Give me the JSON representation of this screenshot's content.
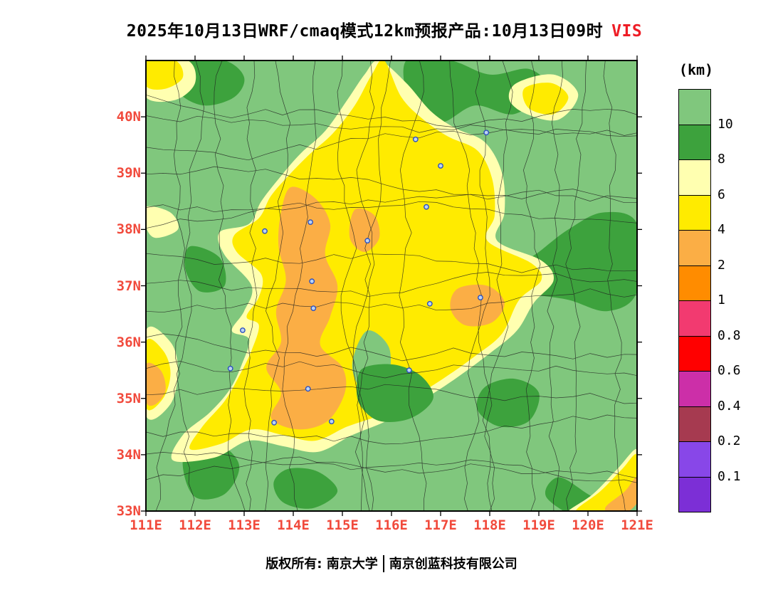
{
  "title": {
    "text": "2025年10月13日WRF/cmaq模式12km预报产品:10月13日09时",
    "highlight": "VIS",
    "highlight_color": "#ee1c25"
  },
  "axes": {
    "lat_labels": [
      "40N",
      "39N",
      "38N",
      "37N",
      "36N",
      "35N",
      "34N",
      "33N"
    ],
    "lon_labels": [
      "111E",
      "112E",
      "113E",
      "114E",
      "115E",
      "116E",
      "117E",
      "118E",
      "119E",
      "120E",
      "121E"
    ],
    "label_color": "#f14a3c"
  },
  "legend": {
    "title": "(km)",
    "tick_labels": [
      "10",
      "8",
      "6",
      "4",
      "2",
      "1",
      "0.8",
      "0.6",
      "0.4",
      "0.2",
      "0.1"
    ]
  },
  "footer": {
    "left": "版权所有: 南京大学",
    "right": "南京创蓝科技有限公司"
  },
  "chart_data": {
    "type": "heatmap",
    "subtype": "filled-contour-visibility-map",
    "variable": "VIS",
    "unit": "km",
    "lon_range": [
      111,
      121
    ],
    "lat_range": [
      33,
      41
    ],
    "legend_levels": [
      10,
      8,
      6,
      4,
      2,
      1,
      0.8,
      0.6,
      0.4,
      0.2,
      0.1
    ],
    "palette": [
      "#80c77d",
      "#3da23d",
      "#ffffb0",
      "#ffeb00",
      "#fbae45",
      "#ff8c00",
      "#f23a70",
      "#ff0000",
      "#cc2fa8",
      "#a63a50",
      "#8847e8",
      "#7c2fd6"
    ],
    "station_fill": "#bcd4f2",
    "station_stroke": "#2b4fc0",
    "regions": [
      {
        "c": 1,
        "pts": [
          [
            111.75,
            41.0
          ],
          [
            112.6,
            41.0
          ],
          [
            113.0,
            40.7
          ],
          [
            112.8,
            40.35
          ],
          [
            112.2,
            40.2
          ],
          [
            111.7,
            40.4
          ],
          [
            111.55,
            40.75
          ]
        ]
      },
      {
        "c": 1,
        "pts": [
          [
            116.3,
            41.0
          ],
          [
            117.2,
            41.0
          ],
          [
            118.0,
            40.75
          ],
          [
            118.8,
            40.85
          ],
          [
            119.15,
            40.5
          ],
          [
            118.5,
            40.05
          ],
          [
            117.7,
            40.2
          ],
          [
            117.0,
            39.9
          ],
          [
            116.4,
            40.2
          ]
        ]
      },
      {
        "c": 1,
        "pts": [
          [
            119.0,
            37.6
          ],
          [
            119.6,
            38.0
          ],
          [
            120.3,
            38.3
          ],
          [
            121.0,
            38.1
          ],
          [
            121.0,
            36.9
          ],
          [
            120.4,
            36.55
          ],
          [
            119.6,
            36.75
          ],
          [
            118.7,
            36.9
          ],
          [
            118.45,
            37.25
          ]
        ]
      },
      {
        "c": 1,
        "pts": [
          [
            111.9,
            37.7
          ],
          [
            112.5,
            37.5
          ],
          [
            112.6,
            37.0
          ],
          [
            112.1,
            36.9
          ],
          [
            111.8,
            37.3
          ]
        ]
      },
      {
        "c": 1,
        "pts": [
          [
            111.9,
            34.3
          ],
          [
            112.5,
            34.2
          ],
          [
            112.9,
            33.8
          ],
          [
            112.6,
            33.3
          ],
          [
            112.0,
            33.25
          ],
          [
            111.75,
            33.8
          ]
        ]
      },
      {
        "c": 1,
        "pts": [
          [
            113.9,
            33.75
          ],
          [
            114.5,
            33.7
          ],
          [
            114.9,
            33.35
          ],
          [
            114.4,
            33.05
          ],
          [
            113.8,
            33.15
          ],
          [
            113.6,
            33.5
          ]
        ]
      },
      {
        "c": 1,
        "pts": [
          [
            117.9,
            35.2
          ],
          [
            118.5,
            35.35
          ],
          [
            119.0,
            35.1
          ],
          [
            118.8,
            34.6
          ],
          [
            118.2,
            34.5
          ],
          [
            117.75,
            34.8
          ]
        ]
      },
      {
        "c": 1,
        "pts": [
          [
            119.4,
            33.6
          ],
          [
            120.0,
            33.3
          ],
          [
            120.6,
            32.95
          ],
          [
            119.9,
            32.85
          ],
          [
            119.15,
            33.25
          ]
        ]
      },
      {
        "c": 2,
        "pts": [
          [
            115.75,
            41.0
          ],
          [
            116.3,
            40.6
          ],
          [
            116.8,
            40.1
          ],
          [
            117.3,
            39.8
          ],
          [
            117.9,
            39.55
          ],
          [
            118.25,
            39.0
          ],
          [
            118.3,
            38.3
          ],
          [
            118.15,
            37.8
          ],
          [
            119.05,
            37.45
          ],
          [
            119.3,
            37.1
          ],
          [
            118.9,
            36.7
          ],
          [
            118.55,
            36.2
          ],
          [
            118.0,
            35.8
          ],
          [
            117.3,
            35.35
          ],
          [
            116.6,
            34.95
          ],
          [
            115.9,
            34.6
          ],
          [
            115.2,
            34.35
          ],
          [
            114.5,
            34.05
          ],
          [
            113.8,
            34.15
          ],
          [
            113.1,
            34.25
          ],
          [
            112.4,
            33.95
          ],
          [
            111.55,
            33.9
          ],
          [
            111.75,
            34.35
          ],
          [
            112.3,
            34.75
          ],
          [
            112.7,
            35.15
          ],
          [
            112.95,
            35.6
          ],
          [
            113.1,
            36.05
          ],
          [
            112.75,
            36.2
          ],
          [
            113.0,
            36.55
          ],
          [
            113.15,
            37.0
          ],
          [
            112.6,
            37.55
          ],
          [
            112.5,
            37.95
          ],
          [
            113.1,
            38.1
          ],
          [
            113.35,
            38.5
          ],
          [
            113.75,
            38.95
          ],
          [
            114.15,
            39.35
          ],
          [
            114.65,
            39.75
          ],
          [
            115.1,
            40.3
          ],
          [
            115.45,
            40.75
          ]
        ]
      },
      {
        "c": 2,
        "pts": [
          [
            111.0,
            41.0
          ],
          [
            111.85,
            41.0
          ],
          [
            112.0,
            40.6
          ],
          [
            111.6,
            40.3
          ],
          [
            111.0,
            40.35
          ]
        ]
      },
      {
        "c": 2,
        "pts": [
          [
            111.0,
            36.2
          ],
          [
            111.5,
            36.0
          ],
          [
            111.65,
            35.5
          ],
          [
            111.5,
            34.9
          ],
          [
            111.0,
            34.7
          ]
        ]
      },
      {
        "c": 2,
        "pts": [
          [
            118.55,
            40.6
          ],
          [
            119.3,
            40.75
          ],
          [
            119.8,
            40.4
          ],
          [
            119.4,
            39.95
          ],
          [
            118.75,
            40.05
          ],
          [
            118.4,
            40.3
          ]
        ]
      },
      {
        "c": 2,
        "pts": [
          [
            119.55,
            32.95
          ],
          [
            120.1,
            33.3
          ],
          [
            120.6,
            33.75
          ],
          [
            121.0,
            34.1
          ],
          [
            121.0,
            33.55
          ],
          [
            120.45,
            33.1
          ],
          [
            119.95,
            32.85
          ]
        ]
      },
      {
        "c": 2,
        "pts": [
          [
            111.0,
            38.4
          ],
          [
            111.5,
            38.3
          ],
          [
            111.65,
            38.0
          ],
          [
            111.2,
            37.85
          ],
          [
            111.0,
            38.05
          ]
        ]
      },
      {
        "c": 3,
        "pts": [
          [
            115.85,
            41.0
          ],
          [
            116.2,
            40.35
          ],
          [
            116.65,
            39.95
          ],
          [
            117.15,
            39.65
          ],
          [
            117.75,
            39.4
          ],
          [
            118.05,
            38.9
          ],
          [
            118.1,
            38.25
          ],
          [
            117.95,
            37.8
          ],
          [
            118.85,
            37.4
          ],
          [
            119.05,
            37.1
          ],
          [
            118.6,
            36.75
          ],
          [
            118.25,
            36.15
          ],
          [
            117.7,
            35.75
          ],
          [
            117.05,
            35.35
          ],
          [
            116.4,
            35.0
          ],
          [
            115.75,
            34.7
          ],
          [
            115.1,
            34.5
          ],
          [
            114.45,
            34.25
          ],
          [
            113.8,
            34.35
          ],
          [
            113.15,
            34.45
          ],
          [
            112.55,
            34.2
          ],
          [
            111.9,
            34.1
          ],
          [
            112.15,
            34.5
          ],
          [
            112.6,
            34.95
          ],
          [
            112.9,
            35.4
          ],
          [
            113.15,
            35.85
          ],
          [
            113.3,
            36.3
          ],
          [
            113.05,
            36.45
          ],
          [
            113.3,
            36.8
          ],
          [
            113.35,
            37.2
          ],
          [
            112.85,
            37.6
          ],
          [
            112.8,
            37.9
          ],
          [
            113.3,
            38.2
          ],
          [
            113.55,
            38.6
          ],
          [
            113.95,
            39.0
          ],
          [
            114.35,
            39.35
          ],
          [
            114.8,
            39.7
          ],
          [
            115.25,
            40.2
          ],
          [
            115.6,
            40.75
          ]
        ]
      },
      {
        "c": 3,
        "pts": [
          [
            111.0,
            41.0
          ],
          [
            111.6,
            41.0
          ],
          [
            111.75,
            40.7
          ],
          [
            111.4,
            40.5
          ],
          [
            111.0,
            40.55
          ]
        ]
      },
      {
        "c": 3,
        "pts": [
          [
            111.0,
            36.0
          ],
          [
            111.35,
            35.85
          ],
          [
            111.5,
            35.45
          ],
          [
            111.35,
            35.0
          ],
          [
            111.0,
            34.85
          ]
        ]
      },
      {
        "c": 3,
        "pts": [
          [
            118.7,
            40.5
          ],
          [
            119.25,
            40.6
          ],
          [
            119.6,
            40.35
          ],
          [
            119.3,
            40.05
          ],
          [
            118.8,
            40.15
          ]
        ]
      },
      {
        "c": 3,
        "pts": [
          [
            119.75,
            33.0
          ],
          [
            120.25,
            33.35
          ],
          [
            120.7,
            33.75
          ],
          [
            121.0,
            34.0
          ],
          [
            121.0,
            33.35
          ],
          [
            120.5,
            33.0
          ],
          [
            120.1,
            32.9
          ]
        ]
      },
      {
        "c": 0,
        "pts": [
          [
            115.5,
            36.2
          ],
          [
            115.95,
            35.9
          ],
          [
            115.9,
            35.3
          ],
          [
            115.45,
            35.1
          ],
          [
            115.2,
            35.6
          ]
        ]
      },
      {
        "c": 1,
        "pts": [
          [
            115.45,
            35.55
          ],
          [
            116.05,
            35.6
          ],
          [
            116.6,
            35.4
          ],
          [
            116.85,
            35.0
          ],
          [
            116.4,
            34.65
          ],
          [
            115.75,
            34.6
          ],
          [
            115.35,
            34.9
          ],
          [
            115.3,
            35.3
          ]
        ]
      },
      {
        "c": 4,
        "pts": [
          [
            113.95,
            38.75
          ],
          [
            114.45,
            38.55
          ],
          [
            114.75,
            38.1
          ],
          [
            114.65,
            37.55
          ],
          [
            114.9,
            37.0
          ],
          [
            114.75,
            36.45
          ],
          [
            114.55,
            35.95
          ],
          [
            115.0,
            35.55
          ],
          [
            115.05,
            35.1
          ],
          [
            114.7,
            34.6
          ],
          [
            114.1,
            34.45
          ],
          [
            113.55,
            34.65
          ],
          [
            113.75,
            35.1
          ],
          [
            113.45,
            35.55
          ],
          [
            113.75,
            36.0
          ],
          [
            113.65,
            36.55
          ],
          [
            113.85,
            37.1
          ],
          [
            113.7,
            37.7
          ],
          [
            113.75,
            38.3
          ]
        ]
      },
      {
        "c": 4,
        "pts": [
          [
            115.25,
            38.35
          ],
          [
            115.65,
            38.25
          ],
          [
            115.75,
            37.85
          ],
          [
            115.45,
            37.6
          ],
          [
            115.15,
            37.85
          ]
        ]
      },
      {
        "c": 4,
        "pts": [
          [
            117.35,
            36.95
          ],
          [
            117.95,
            37.0
          ],
          [
            118.3,
            36.7
          ],
          [
            118.05,
            36.35
          ],
          [
            117.5,
            36.3
          ],
          [
            117.2,
            36.6
          ]
        ]
      },
      {
        "c": 4,
        "pts": [
          [
            111.0,
            35.6
          ],
          [
            111.3,
            35.5
          ],
          [
            111.4,
            35.15
          ],
          [
            111.2,
            34.9
          ],
          [
            111.0,
            34.95
          ]
        ]
      },
      {
        "c": 4,
        "pts": [
          [
            120.35,
            33.05
          ],
          [
            120.75,
            33.35
          ],
          [
            121.0,
            33.6
          ],
          [
            121.0,
            33.15
          ],
          [
            120.6,
            32.9
          ]
        ]
      }
    ],
    "stations": [
      [
        113.42,
        37.97
      ],
      [
        114.35,
        38.13
      ],
      [
        114.38,
        37.08
      ],
      [
        114.41,
        36.6
      ],
      [
        112.97,
        36.21
      ],
      [
        112.72,
        35.53
      ],
      [
        115.51,
        37.8
      ],
      [
        114.3,
        35.17
      ],
      [
        113.61,
        34.57
      ],
      [
        114.78,
        34.59
      ],
      [
        116.71,
        38.4
      ],
      [
        116.78,
        36.68
      ],
      [
        116.49,
        39.6
      ],
      [
        117.0,
        39.13
      ],
      [
        117.93,
        39.72
      ],
      [
        117.81,
        36.79
      ],
      [
        116.36,
        35.5
      ]
    ]
  }
}
